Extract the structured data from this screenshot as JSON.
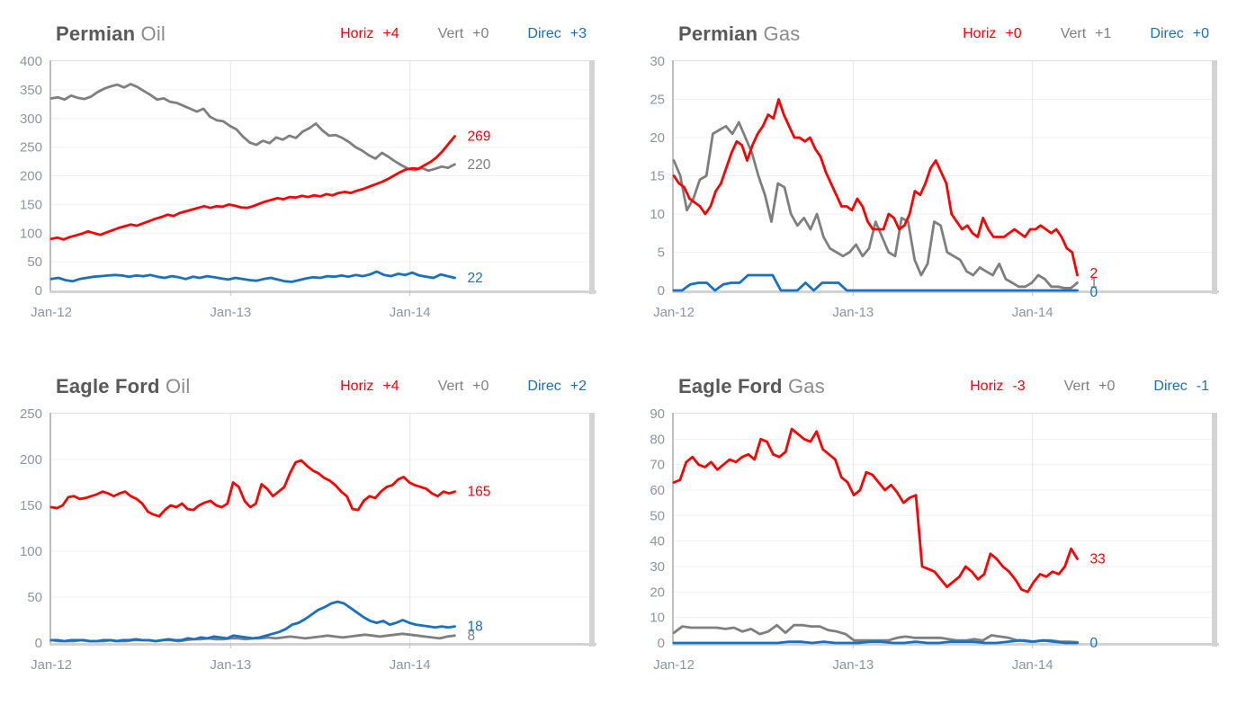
{
  "colors": {
    "horiz": "#ff0000",
    "vert": "#7f7f7f",
    "direc": "#1770c0",
    "title_main": "#595959",
    "title_light": "#8c8c8c",
    "axis_text": "#8c96a0",
    "grid": "#f0f0f0",
    "grid_year": "#e6e6e6",
    "border": "#d3d3d3",
    "border_left": "#bfbfbf",
    "border_top": "#dedede",
    "tick": "#c2c2c2"
  },
  "chart_data": [
    {
      "id": "permian-oil",
      "type": "line",
      "title_main": "Permian",
      "title_sub": "Oil",
      "legend": [
        {
          "label": "Horiz",
          "value": "+4",
          "color": "#ff0000"
        },
        {
          "label": "Vert",
          "value": "+0",
          "color": "#7f7f7f"
        },
        {
          "label": "Direc",
          "value": "+3",
          "color": "#1770c0"
        }
      ],
      "ylim": [
        0,
        400
      ],
      "ystep": 50,
      "yticks": [
        0,
        50,
        100,
        150,
        200,
        250,
        300,
        350,
        400
      ],
      "xticks": [
        {
          "month": 0,
          "label": "Jan-12"
        },
        {
          "month": 12,
          "label": "Jan-13"
        },
        {
          "month": 24,
          "label": "Jan-14"
        }
      ],
      "axis_months": 36,
      "data_months": 27,
      "grid_year_months": [
        12,
        24
      ],
      "series": [
        {
          "name": "Vert",
          "color": "#7f7f7f",
          "end_label": "220",
          "label_dy": 0,
          "values": [
            335,
            337,
            333,
            340,
            336,
            334,
            338,
            346,
            352,
            356,
            359,
            354,
            360,
            355,
            348,
            341,
            333,
            335,
            329,
            327,
            322,
            317,
            312,
            317,
            303,
            297,
            295,
            287,
            281,
            268,
            258,
            254,
            261,
            257,
            267,
            263,
            270,
            266,
            277,
            283,
            291,
            279,
            270,
            271,
            266,
            259,
            250,
            244,
            236,
            230,
            240,
            233,
            225,
            218,
            212,
            210,
            214,
            209,
            212,
            216,
            214,
            220
          ]
        },
        {
          "name": "Horiz",
          "color": "#ff0000",
          "end_label": "269",
          "label_dy": 0,
          "values": [
            90,
            92,
            89,
            93,
            96,
            99,
            103,
            100,
            97,
            101,
            105,
            109,
            112,
            115,
            113,
            117,
            121,
            125,
            128,
            132,
            130,
            135,
            138,
            141,
            144,
            147,
            144,
            147,
            146,
            150,
            148,
            145,
            144,
            147,
            151,
            155,
            158,
            161,
            159,
            163,
            162,
            165,
            163,
            166,
            164,
            168,
            166,
            170,
            172,
            170,
            174,
            177,
            181,
            185,
            189,
            194,
            200,
            206,
            211,
            213,
            212,
            218,
            224,
            232,
            243,
            256,
            269
          ]
        },
        {
          "name": "Direc",
          "color": "#1770c0",
          "end_label": "22",
          "label_dy": 0,
          "values": [
            20,
            22,
            18,
            16,
            20,
            22,
            24,
            25,
            26,
            27,
            26,
            24,
            26,
            25,
            27,
            24,
            22,
            25,
            23,
            20,
            24,
            22,
            25,
            23,
            21,
            19,
            22,
            20,
            18,
            17,
            20,
            22,
            19,
            16,
            15,
            18,
            21,
            23,
            22,
            25,
            24,
            26,
            24,
            27,
            25,
            28,
            33,
            27,
            25,
            29,
            27,
            31,
            26,
            24,
            22,
            28,
            25,
            22
          ]
        }
      ]
    },
    {
      "id": "permian-gas",
      "type": "line",
      "title_main": "Permian",
      "title_sub": "Gas",
      "legend": [
        {
          "label": "Horiz",
          "value": "+0",
          "color": "#ff0000"
        },
        {
          "label": "Vert",
          "value": "+1",
          "color": "#7f7f7f"
        },
        {
          "label": "Direc",
          "value": "+0",
          "color": "#1770c0"
        }
      ],
      "ylim": [
        0,
        30
      ],
      "ystep": 5,
      "yticks": [
        0,
        5,
        10,
        15,
        20,
        25,
        30
      ],
      "xticks": [
        {
          "month": 0,
          "label": "Jan-12"
        },
        {
          "month": 12,
          "label": "Jan-13"
        },
        {
          "month": 24,
          "label": "Jan-14"
        }
      ],
      "axis_months": 36,
      "data_months": 27,
      "grid_year_months": [
        12,
        24
      ],
      "series": [
        {
          "name": "Vert",
          "color": "#7f7f7f",
          "end_label": "1",
          "label_dy": 0,
          "values": [
            17,
            15,
            10.5,
            12,
            14.5,
            15,
            20.5,
            21,
            21.5,
            20.5,
            22,
            20,
            18,
            15,
            12.5,
            9,
            14,
            13.5,
            10,
            8.5,
            9.5,
            8,
            10,
            7,
            5.5,
            5,
            4.5,
            5,
            6,
            4.5,
            5.5,
            9,
            7,
            5,
            4.5,
            9.5,
            9,
            4,
            2,
            3.5,
            9,
            8.5,
            5,
            4.5,
            4,
            2.5,
            2,
            3,
            2.5,
            2,
            3.5,
            1.5,
            1,
            0.5,
            0.5,
            1,
            2,
            1.5,
            0.5,
            0.5,
            0.3,
            0.3,
            1
          ]
        },
        {
          "name": "Horiz",
          "color": "#ff0000",
          "end_label": "2",
          "label_dy": -2,
          "values": [
            15,
            14,
            13.5,
            12,
            11.5,
            11,
            10,
            11,
            13,
            14,
            16,
            18,
            19.5,
            19,
            17,
            19,
            20.5,
            21.5,
            23,
            22.5,
            25,
            23,
            21.5,
            20,
            20,
            19.5,
            20,
            18.5,
            17.5,
            15.5,
            14,
            12.5,
            11,
            11,
            10.5,
            12,
            11,
            9,
            8,
            8,
            8,
            10,
            9.5,
            8,
            8.5,
            10,
            13,
            12.5,
            14,
            16,
            17,
            15.5,
            14,
            10,
            9,
            8,
            8.5,
            7.5,
            7,
            9.5,
            8,
            7,
            7,
            7,
            7.5,
            8,
            7.5,
            7,
            8,
            8,
            8.5,
            8,
            7.5,
            8,
            7,
            5.5,
            5,
            2
          ]
        },
        {
          "name": "Direc",
          "color": "#1770c0",
          "end_label": "0",
          "label_dy": 2,
          "values": [
            0,
            0,
            0.8,
            1,
            1,
            0,
            0.8,
            1,
            1,
            2,
            2,
            2,
            2,
            0,
            0,
            0,
            1,
            0,
            1,
            1,
            1,
            0,
            0,
            0,
            0,
            0,
            0,
            0,
            0,
            0,
            0,
            0,
            0,
            0,
            0,
            0,
            0,
            0,
            0,
            0,
            0,
            0,
            0,
            0,
            0,
            0,
            0,
            0,
            0,
            0
          ]
        }
      ]
    },
    {
      "id": "eagle-ford-oil",
      "type": "line",
      "title_main": "Eagle Ford",
      "title_sub": "Oil",
      "legend": [
        {
          "label": "Horiz",
          "value": "+4",
          "color": "#ff0000"
        },
        {
          "label": "Vert",
          "value": "+0",
          "color": "#7f7f7f"
        },
        {
          "label": "Direc",
          "value": "+2",
          "color": "#1770c0"
        }
      ],
      "ylim": [
        0,
        250
      ],
      "ystep": 50,
      "yticks": [
        0,
        50,
        100,
        150,
        200,
        250
      ],
      "xticks": [
        {
          "month": 0,
          "label": "Jan-12"
        },
        {
          "month": 12,
          "label": "Jan-13"
        },
        {
          "month": 24,
          "label": "Jan-14"
        }
      ],
      "axis_months": 36,
      "data_months": 27,
      "grid_year_months": [
        12,
        24
      ],
      "series": [
        {
          "name": "Vert",
          "color": "#7f7f7f",
          "end_label": "8",
          "label_dy": 0,
          "values": [
            3,
            2,
            2,
            2,
            3,
            2,
            2,
            2,
            3,
            2,
            2,
            3,
            3,
            3,
            2,
            3,
            3,
            2,
            3,
            4,
            4,
            5,
            4,
            4,
            5,
            5,
            4,
            5,
            5,
            6,
            5,
            6,
            7,
            6,
            5,
            6,
            7,
            8,
            7,
            6,
            7,
            8,
            9,
            8,
            7,
            8,
            9,
            10,
            9,
            8,
            7,
            6,
            5,
            7,
            8
          ]
        },
        {
          "name": "Horiz",
          "color": "#ff0000",
          "end_label": "165",
          "label_dy": 0,
          "values": [
            148,
            147,
            150,
            159,
            160,
            157,
            158,
            160,
            162,
            165,
            163,
            160,
            163,
            165,
            160,
            157,
            152,
            143,
            140,
            138,
            145,
            150,
            148,
            152,
            146,
            145,
            150,
            153,
            155,
            150,
            148,
            152,
            175,
            170,
            155,
            148,
            152,
            173,
            168,
            160,
            165,
            170,
            185,
            197,
            199,
            193,
            188,
            185,
            180,
            177,
            172,
            165,
            160,
            146,
            145,
            155,
            160,
            158,
            165,
            170,
            172,
            178,
            181,
            175,
            172,
            170,
            168,
            163,
            160,
            165,
            163,
            165
          ]
        },
        {
          "name": "Direc",
          "color": "#1770c0",
          "end_label": "18",
          "label_dy": 0,
          "values": [
            3,
            3,
            2,
            3,
            3,
            3,
            2,
            2,
            3,
            3,
            2,
            3,
            3,
            4,
            3,
            3,
            2,
            3,
            4,
            3,
            3,
            5,
            4,
            6,
            5,
            7,
            6,
            5,
            8,
            7,
            6,
            5,
            6,
            8,
            10,
            12,
            15,
            20,
            22,
            26,
            31,
            36,
            39,
            43,
            45,
            43,
            38,
            33,
            28,
            24,
            22,
            24,
            20,
            22,
            25,
            22,
            20,
            19,
            18,
            17,
            18,
            17,
            18
          ]
        }
      ]
    },
    {
      "id": "eagle-ford-gas",
      "type": "line",
      "title_main": "Eagle Ford",
      "title_sub": "Gas",
      "legend": [
        {
          "label": "Horiz",
          "value": "-3",
          "color": "#ff0000"
        },
        {
          "label": "Vert",
          "value": "+0",
          "color": "#7f7f7f"
        },
        {
          "label": "Direc",
          "value": "-1",
          "color": "#1770c0"
        }
      ],
      "ylim": [
        0,
        90
      ],
      "ystep": 10,
      "yticks": [
        0,
        10,
        20,
        30,
        40,
        50,
        60,
        70,
        80,
        90
      ],
      "xticks": [
        {
          "month": 0,
          "label": "Jan-12"
        },
        {
          "month": 12,
          "label": "Jan-13"
        },
        {
          "month": 24,
          "label": "Jan-14"
        }
      ],
      "axis_months": 36,
      "data_months": 27,
      "grid_year_months": [
        12,
        24
      ],
      "series": [
        {
          "name": "Vert",
          "color": "#7f7f7f",
          "end_label": "",
          "label_dy": 0,
          "values": [
            4,
            6.5,
            6,
            6,
            6,
            6,
            5.5,
            6,
            4.5,
            5.5,
            3.5,
            4.5,
            7,
            4,
            7,
            7,
            6.5,
            6.5,
            5,
            4.5,
            3.5,
            1,
            1,
            1,
            1,
            1,
            2,
            2.5,
            2,
            2,
            2,
            2,
            1.5,
            1,
            1,
            1.5,
            1,
            3,
            2.5,
            2,
            1,
            1,
            0.5,
            1,
            1,
            0.5,
            0.5,
            0.3
          ]
        },
        {
          "name": "Horiz",
          "color": "#ff0000",
          "end_label": "33",
          "label_dy": 0,
          "values": [
            63,
            64,
            71,
            73,
            70,
            69,
            71,
            68,
            70,
            72,
            71,
            73,
            74,
            72,
            80,
            79,
            74,
            73,
            75,
            84,
            82,
            80,
            79,
            83,
            76,
            74,
            72,
            65,
            63,
            58,
            60,
            67,
            66,
            63,
            60,
            62,
            59,
            55,
            57,
            58,
            30,
            29,
            28,
            25,
            22,
            24,
            26,
            30,
            28,
            25,
            27,
            35,
            33,
            30,
            28,
            25,
            21,
            20,
            24,
            27,
            26,
            28,
            27,
            30,
            37,
            33
          ]
        },
        {
          "name": "Direc",
          "color": "#1770c0",
          "end_label": "0",
          "label_dy": 0,
          "values": [
            0,
            0,
            0,
            0,
            0,
            0,
            0,
            0,
            0,
            0,
            0.5,
            0.5,
            0,
            0.5,
            0,
            0,
            0,
            0.5,
            0.5,
            0,
            0,
            0.5,
            0,
            0,
            0.5,
            0.5,
            0.5,
            0,
            0,
            0.5,
            1,
            0.5,
            1,
            0.5,
            0,
            0
          ]
        }
      ]
    }
  ]
}
